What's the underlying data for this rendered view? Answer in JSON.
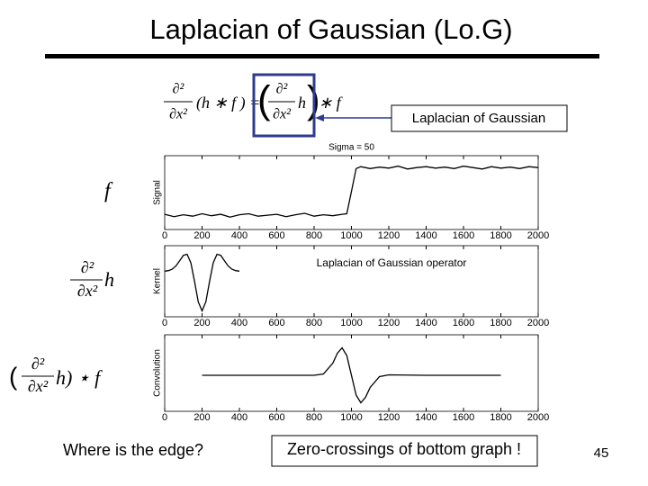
{
  "slide": {
    "title": "Laplacian of Gaussian (Lo.G)",
    "callout": "Laplacian of Gaussian",
    "question": "Where is the edge?",
    "answer": "Zero-crossings of bottom graph !",
    "page_number": "45"
  },
  "equation": {
    "left_num": "∂²",
    "left_den": "∂x²",
    "left_rest": "(h ∗ f ) =",
    "right_num": "∂²",
    "right_den": "∂x²",
    "right_h": "h",
    "right_rest": "∗ f"
  },
  "row_labels": {
    "signal": "f",
    "kernel_num": "∂²",
    "kernel_den": "∂x²",
    "kernel_rest": "h",
    "conv_open": "(",
    "conv_num": "∂²",
    "conv_den": "∂x²",
    "conv_rest": "h) ⋆ f"
  },
  "chart_data": [
    {
      "type": "line",
      "title": "Sigma = 50",
      "y_label": "Signal",
      "grid": false,
      "x": [
        0,
        50,
        100,
        150,
        200,
        250,
        300,
        350,
        400,
        450,
        500,
        550,
        600,
        650,
        700,
        750,
        800,
        850,
        900,
        950,
        975,
        1000,
        1025,
        1050,
        1100,
        1150,
        1200,
        1250,
        1300,
        1350,
        1400,
        1450,
        1500,
        1550,
        1600,
        1650,
        1700,
        1750,
        1800,
        1850,
        1900,
        1950,
        2000
      ],
      "series": [
        {
          "color": "#000000",
          "values": [
            0.02,
            -0.03,
            0.01,
            -0.02,
            0.03,
            -0.01,
            0.02,
            -0.04,
            0.01,
            0.03,
            -0.02,
            0.0,
            0.02,
            -0.03,
            0.01,
            0.04,
            -0.02,
            0.01,
            -0.01,
            0.02,
            0.03,
            0.5,
            0.98,
            1.02,
            0.98,
            1.01,
            0.99,
            1.03,
            0.97,
            1.0,
            1.02,
            0.99,
            1.01,
            0.98,
            1.03,
            1.0,
            0.97,
            1.02,
            0.99,
            1.01,
            0.98,
            1.02,
            1.0
          ]
        }
      ],
      "xlim": [
        0,
        2000
      ],
      "xticks": [
        0,
        200,
        400,
        600,
        800,
        1000,
        1200,
        1400,
        1600,
        1800,
        2000
      ],
      "ylim": [
        -0.3,
        1.25
      ]
    },
    {
      "type": "line",
      "y_label": "Kernel",
      "annotation": "Laplacian of Gaussian operator",
      "grid": false,
      "x": [
        0,
        20,
        40,
        60,
        80,
        100,
        120,
        140,
        160,
        180,
        200,
        220,
        240,
        260,
        280,
        300,
        320,
        340,
        360,
        380,
        400
      ],
      "series": [
        {
          "color": "#000000",
          "values": [
            0.005,
            0.018,
            0.055,
            0.136,
            0.267,
            0.406,
            0.434,
            0.214,
            -0.261,
            -0.775,
            -1,
            -0.775,
            -0.261,
            0.214,
            0.434,
            0.406,
            0.267,
            0.136,
            0.055,
            0.018,
            0.005
          ]
        }
      ],
      "xlim": [
        0,
        2000
      ],
      "xticks": [
        0,
        200,
        400,
        600,
        800,
        1000,
        1200,
        1400,
        1600,
        1800,
        2000
      ],
      "ylim": [
        -1.15,
        0.65
      ]
    },
    {
      "type": "line",
      "y_label": "Convolution",
      "grid": false,
      "x": [
        200,
        400,
        600,
        800,
        850,
        900,
        925,
        950,
        975,
        1000,
        1025,
        1050,
        1075,
        1100,
        1150,
        1200,
        1400,
        1600,
        1800
      ],
      "series": [
        {
          "color": "#000000",
          "values": [
            0,
            0,
            0,
            0,
            0.03,
            0.27,
            0.49,
            0.61,
            0.44,
            0,
            -0.44,
            -0.61,
            -0.49,
            -0.27,
            -0.03,
            0.01,
            0,
            0,
            0
          ]
        }
      ],
      "xlim": [
        0,
        2000
      ],
      "xticks": [
        0,
        200,
        400,
        600,
        800,
        1000,
        1200,
        1400,
        1600,
        1800,
        2000
      ],
      "ylim": [
        -0.8,
        0.9
      ]
    }
  ]
}
